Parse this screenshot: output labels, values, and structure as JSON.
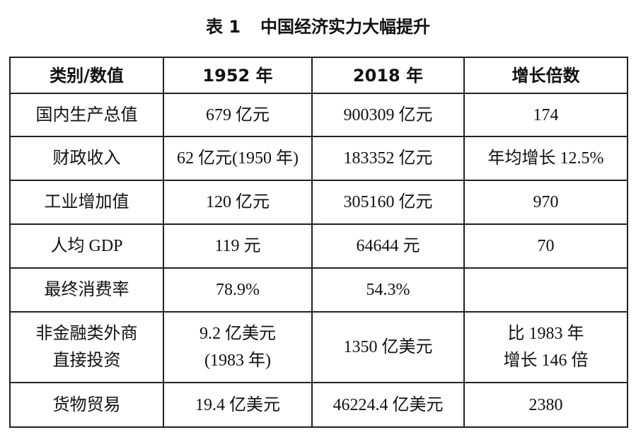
{
  "title": {
    "number": "表 1",
    "text": "中国经济实力大幅提升"
  },
  "table": {
    "header": [
      "类别/数值",
      "1952 年",
      "2018 年",
      "增长倍数"
    ],
    "rows": [
      [
        "国内生产总值",
        "679 亿元",
        "900309 亿元",
        "174"
      ],
      [
        "财政收入",
        "62 亿元(1950 年)",
        "183352 亿元",
        "年均增长 12.5%"
      ],
      [
        "工业增加值",
        "120 亿元",
        "305160 亿元",
        "970"
      ],
      [
        "人均 GDP",
        "119 元",
        "64644 元",
        "70"
      ],
      [
        "最终消费率",
        "78.9%",
        "54.3%"
      ],
      [
        [
          "非金融类外商",
          "直接投资"
        ],
        [
          "9.2 亿美元",
          "(1983 年)"
        ],
        "1350 亿美元",
        [
          "比 1983 年",
          "增长 146 倍"
        ]
      ],
      [
        "货物贸易",
        "19.4 亿美元",
        "46224.4 亿美元",
        "2380"
      ]
    ]
  }
}
